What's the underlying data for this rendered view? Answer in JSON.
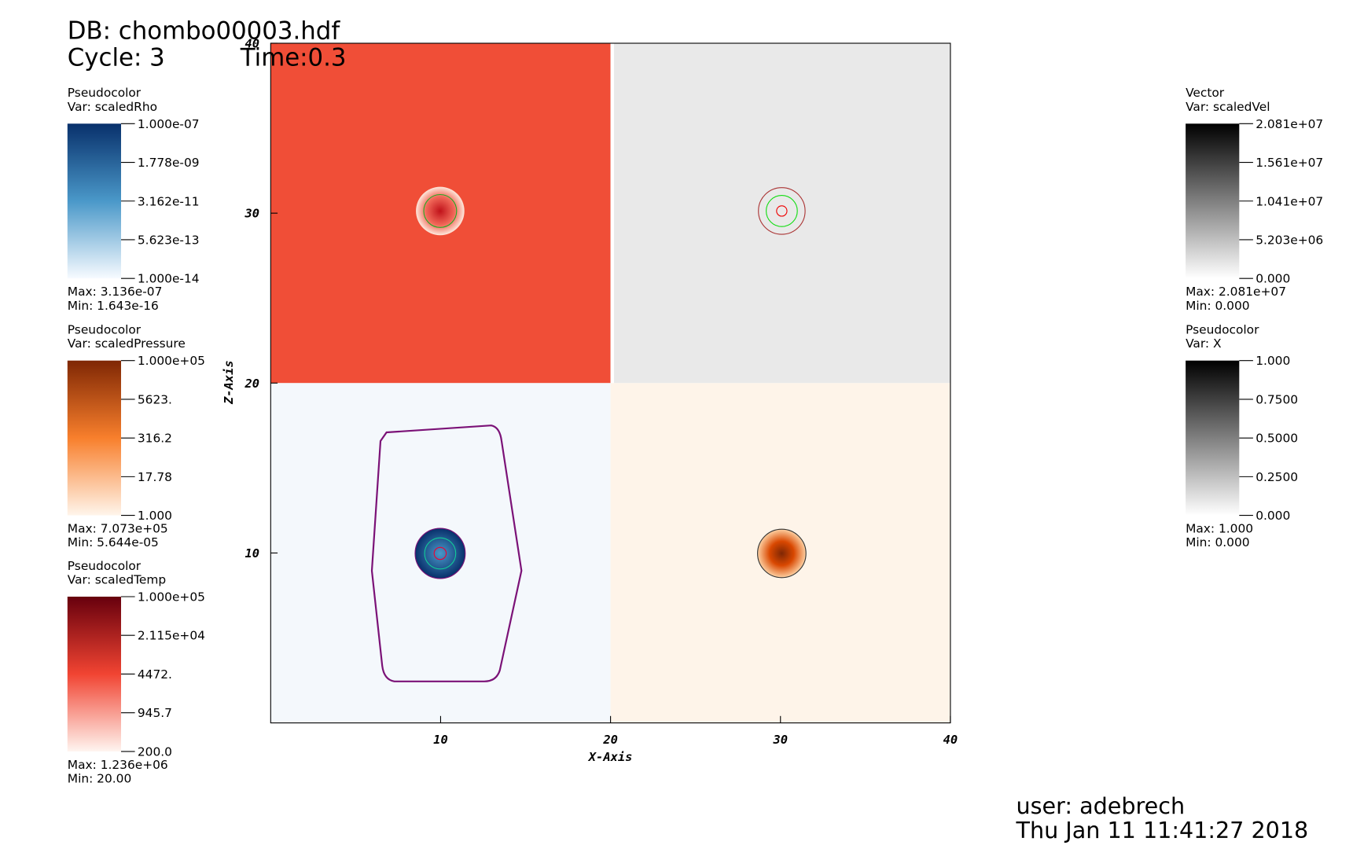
{
  "header": {
    "db": "DB: chombo00003.hdf",
    "cycle": "Cycle: 3",
    "time": "Time:0.3"
  },
  "plot": {
    "x_label": "X-Axis",
    "y_label": "Z-Axis",
    "xlim": [
      0,
      40
    ],
    "ylim": [
      0,
      40
    ],
    "xticks": [
      10,
      20,
      30,
      40
    ],
    "yticks": [
      10,
      20,
      30,
      40
    ]
  },
  "legends_left": [
    {
      "kind": "Pseudocolor",
      "var": "Var: scaledRho",
      "labels": [
        "1.000e-07",
        "1.778e-09",
        "3.162e-11",
        "5.623e-13",
        "1.000e-14"
      ],
      "max": "Max:  3.136e-07",
      "min": "Min:  1.643e-16"
    },
    {
      "kind": "Pseudocolor",
      "var": "Var: scaledPressure",
      "labels": [
        "1.000e+05",
        "5623.",
        "316.2",
        "17.78",
        "1.000"
      ],
      "max": "Max:  7.073e+05",
      "min": "Min:  5.644e-05"
    },
    {
      "kind": "Pseudocolor",
      "var": "Var: scaledTemp",
      "labels": [
        "1.000e+05",
        "2.115e+04",
        "4472.",
        "945.7",
        "200.0"
      ],
      "max": "Max:  1.236e+06",
      "min": "Min:  20.00"
    }
  ],
  "legends_right": [
    {
      "kind": "Vector",
      "var": "Var: scaledVel",
      "labels": [
        "2.081e+07",
        "1.561e+07",
        "1.041e+07",
        "5.203e+06",
        "0.000"
      ],
      "max": "Max:  2.081e+07",
      "min": "Min:  0.000"
    },
    {
      "kind": "Pseudocolor",
      "var": "Var: X",
      "labels": [
        "1.000",
        "0.7500",
        "0.5000",
        "0.2500",
        "0.000"
      ],
      "max": "Max:  1.000",
      "min": "Min:  0.000"
    }
  ],
  "footer": {
    "user": "user: adebrech",
    "date": "Thu Jan 11 11:41:27 2018"
  }
}
